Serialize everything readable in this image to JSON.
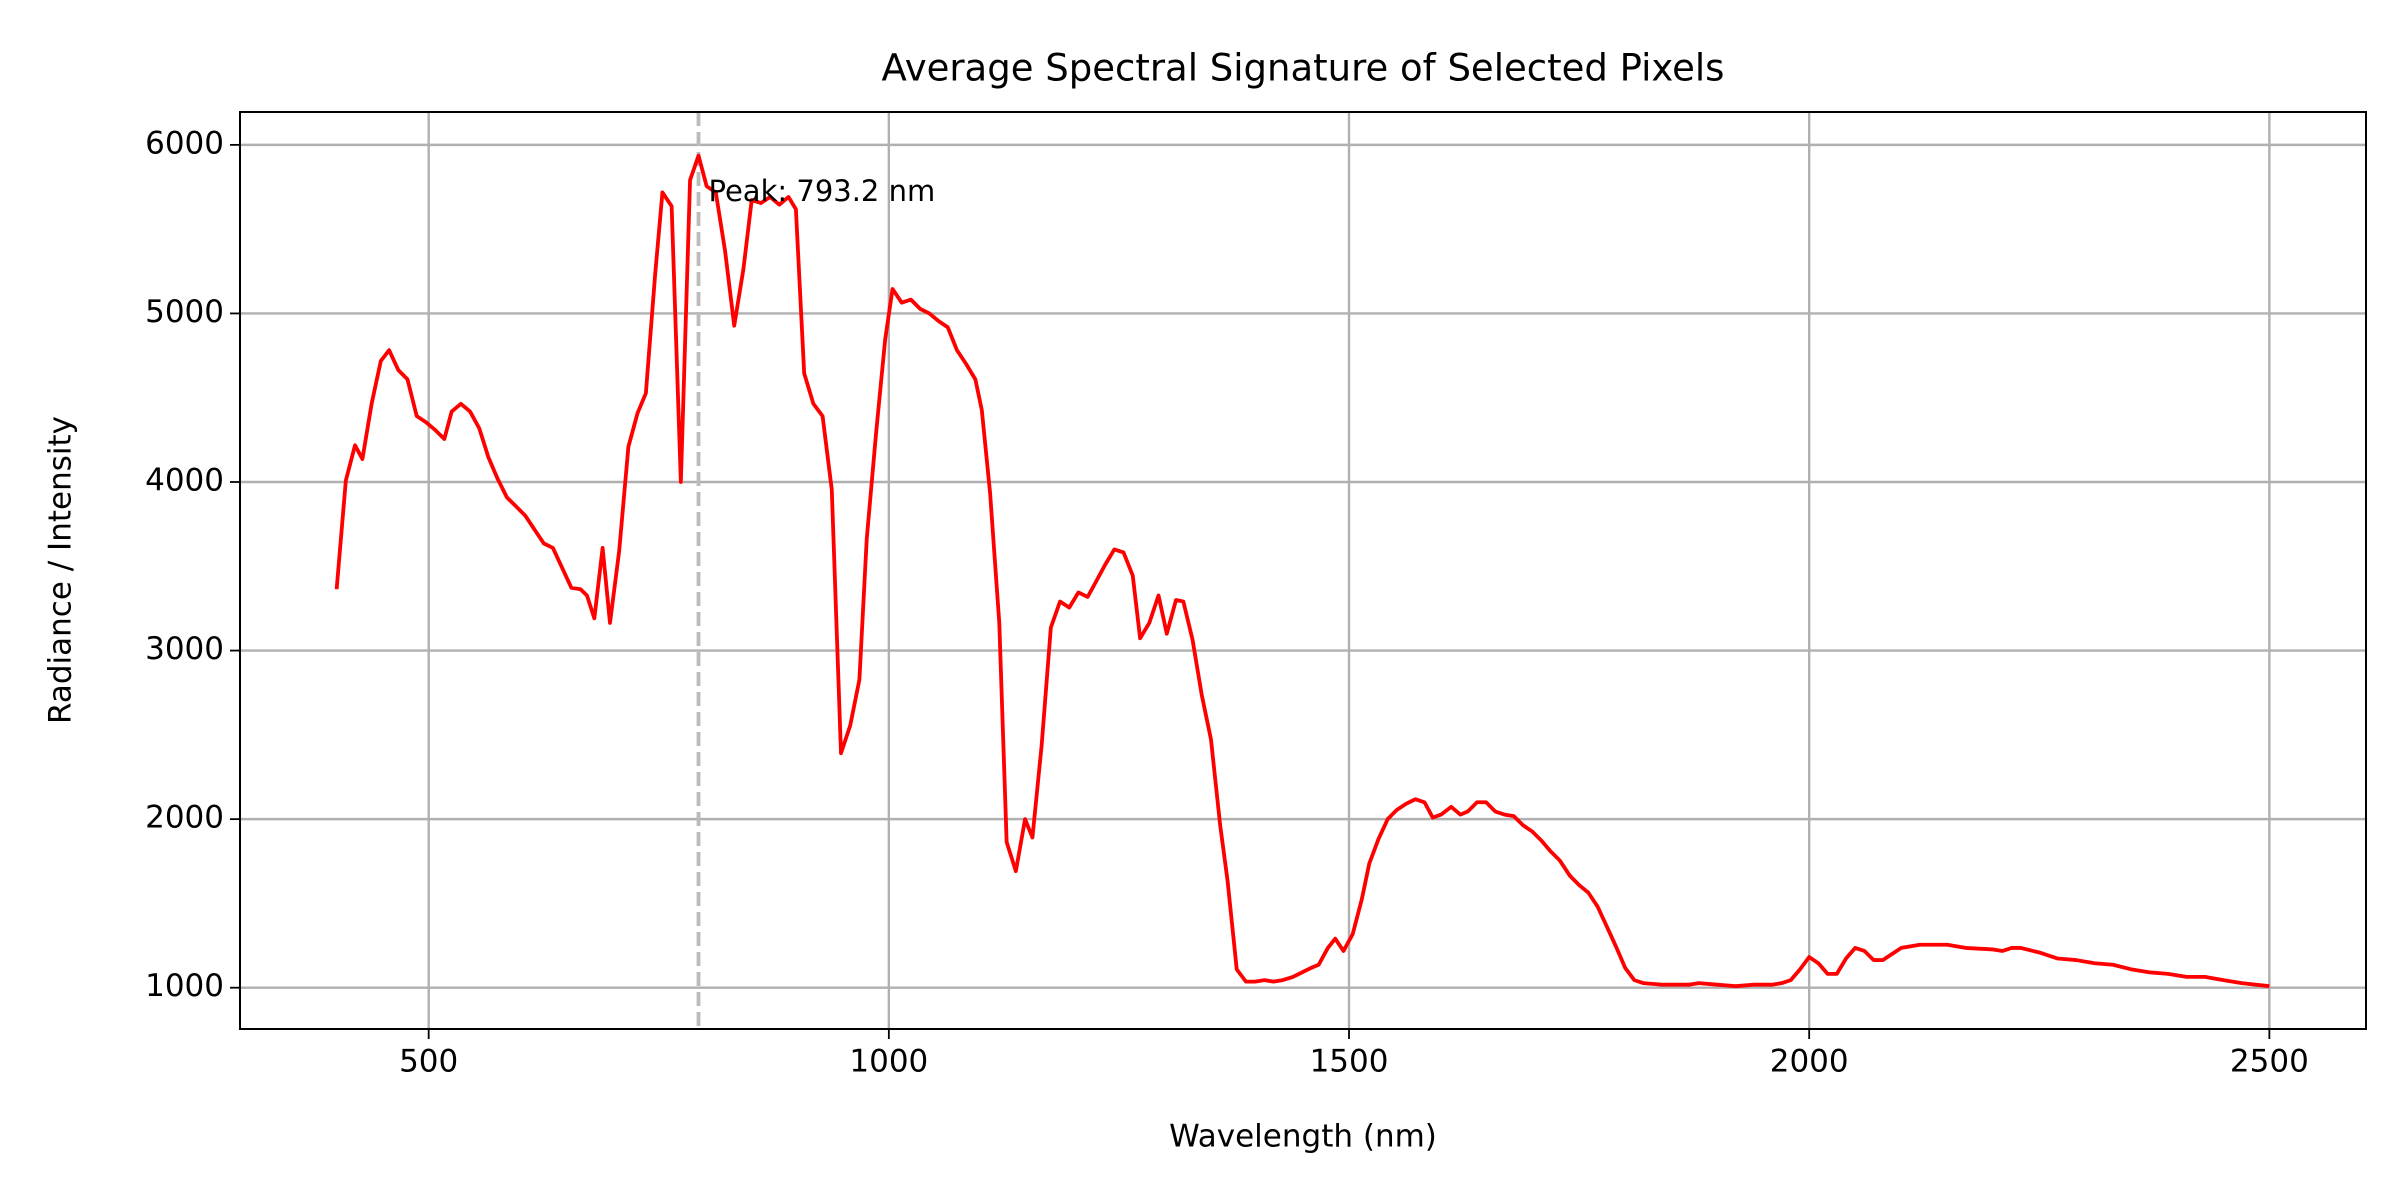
{
  "chart_data": {
    "type": "line",
    "title": "Average Spectral Signature of Selected Pixels",
    "x_label": "Wavelength (nm)",
    "y_label": "Radiance / Intensity",
    "color": "#ff0000",
    "grid": true,
    "xlim": [
      295,
      2605
    ],
    "ylim": [
      755,
      6195
    ],
    "xticks": [
      500,
      1000,
      1500,
      2000,
      2500
    ],
    "yticks": [
      1000,
      2000,
      3000,
      4000,
      5000,
      6000
    ],
    "peak": {
      "x": 793.2,
      "label": "Peak: 793.2 nm",
      "color": "#bbbbbb"
    },
    "x": [
      400,
      410,
      420,
      428,
      438,
      448,
      457,
      467,
      477,
      487,
      497,
      507,
      517,
      525,
      535,
      545,
      555,
      565,
      575,
      585,
      595,
      605,
      615,
      625,
      635,
      645,
      655,
      665,
      672,
      680,
      689,
      697,
      707,
      717,
      727,
      736,
      746,
      754,
      764,
      774,
      784,
      793.2,
      802,
      812,
      822,
      832,
      842,
      851,
      861,
      871,
      881,
      891,
      899,
      908,
      918,
      928,
      938,
      948,
      958,
      968,
      976,
      986,
      996,
      1004,
      1014,
      1024,
      1034,
      1044,
      1054,
      1064,
      1074,
      1084,
      1094,
      1101,
      1110,
      1120,
      1128,
      1138,
      1148,
      1156,
      1166,
      1176,
      1186,
      1196,
      1206,
      1216,
      1226,
      1235,
      1245,
      1255,
      1265,
      1273,
      1283,
      1293,
      1302,
      1312,
      1320,
      1330,
      1340,
      1350,
      1360,
      1368,
      1378,
      1388,
      1398,
      1408,
      1418,
      1428,
      1439,
      1449,
      1459,
      1467,
      1477,
      1485,
      1494,
      1504,
      1514,
      1522,
      1532,
      1542,
      1552,
      1562,
      1572,
      1582,
      1591,
      1600,
      1611,
      1621,
      1629,
      1639,
      1649,
      1659,
      1669,
      1679,
      1689,
      1699,
      1709,
      1719,
      1729,
      1740,
      1750,
      1760,
      1770,
      1780,
      1790,
      1800,
      1810,
      1820,
      1840,
      1870,
      1880,
      1900,
      1920,
      1940,
      1960,
      1970,
      1980,
      1990,
      2000,
      2010,
      2020,
      2030,
      2040,
      2050,
      2060,
      2070,
      2080,
      2090,
      2100,
      2120,
      2150,
      2170,
      2200,
      2210,
      2220,
      2230,
      2250,
      2270,
      2290,
      2310,
      2330,
      2350,
      2370,
      2390,
      2410,
      2430,
      2450,
      2470,
      2500
    ],
    "values": [
      3364,
      4009,
      4218,
      4136,
      4464,
      4718,
      4782,
      4664,
      4609,
      4391,
      4355,
      4309,
      4255,
      4418,
      4464,
      4418,
      4318,
      4145,
      4018,
      3909,
      3855,
      3800,
      3718,
      3636,
      3609,
      3491,
      3373,
      3364,
      3327,
      3191,
      3609,
      3164,
      3591,
      4209,
      4409,
      4527,
      5227,
      5718,
      5636,
      4000,
      5791,
      5936,
      5755,
      5718,
      5373,
      4927,
      5264,
      5673,
      5655,
      5691,
      5645,
      5691,
      5618,
      4645,
      4464,
      4391,
      3955,
      2391,
      2555,
      2827,
      3664,
      4282,
      4845,
      5145,
      5064,
      5082,
      5027,
      5000,
      4955,
      4918,
      4782,
      4700,
      4609,
      4427,
      3936,
      3164,
      1864,
      1691,
      2000,
      1891,
      2436,
      3136,
      3291,
      3255,
      3345,
      3318,
      3418,
      3509,
      3600,
      3582,
      3445,
      3073,
      3164,
      3327,
      3100,
      3300,
      3291,
      3064,
      2736,
      2473,
      1964,
      1636,
      1109,
      1036,
      1036,
      1045,
      1036,
      1045,
      1064,
      1091,
      1118,
      1136,
      1236,
      1291,
      1218,
      1318,
      1527,
      1736,
      1882,
      2000,
      2055,
      2091,
      2118,
      2100,
      2009,
      2027,
      2073,
      2027,
      2045,
      2100,
      2100,
      2045,
      2027,
      2018,
      1964,
      1927,
      1873,
      1809,
      1755,
      1664,
      1609,
      1564,
      1482,
      1364,
      1245,
      1118,
      1045,
      1027,
      1018,
      1018,
      1027,
      1018,
      1009,
      1018,
      1018,
      1027,
      1045,
      1109,
      1182,
      1145,
      1082,
      1082,
      1173,
      1236,
      1218,
      1164,
      1164,
      1200,
      1236,
      1255,
      1255,
      1236,
      1227,
      1218,
      1236,
      1236,
      1209,
      1173,
      1164,
      1145,
      1136,
      1109,
      1091,
      1082,
      1064,
      1064,
      1045,
      1027,
      1009
    ]
  }
}
